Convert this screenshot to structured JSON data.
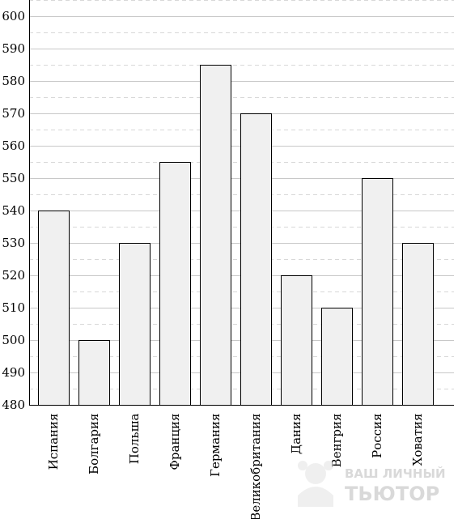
{
  "chart_data": {
    "type": "bar",
    "categories": [
      "Испания",
      "Болгария",
      "Польша",
      "Франция",
      "Германия",
      "Великобритания",
      "Дания",
      "Венгрия",
      "Россия",
      "Ховатия"
    ],
    "values": [
      540,
      500,
      530,
      555,
      585,
      570,
      520,
      510,
      550,
      530
    ],
    "ylim": [
      480,
      600
    ],
    "yticks": [
      480,
      490,
      500,
      510,
      520,
      530,
      540,
      550,
      560,
      570,
      580,
      590,
      600
    ],
    "minor_grid": true,
    "grid": true,
    "title": "",
    "xlabel": "",
    "ylabel": ""
  },
  "watermark": {
    "line1": "ВАШ ЛИЧНЫЙ",
    "line2": "ТЬЮТОР"
  }
}
